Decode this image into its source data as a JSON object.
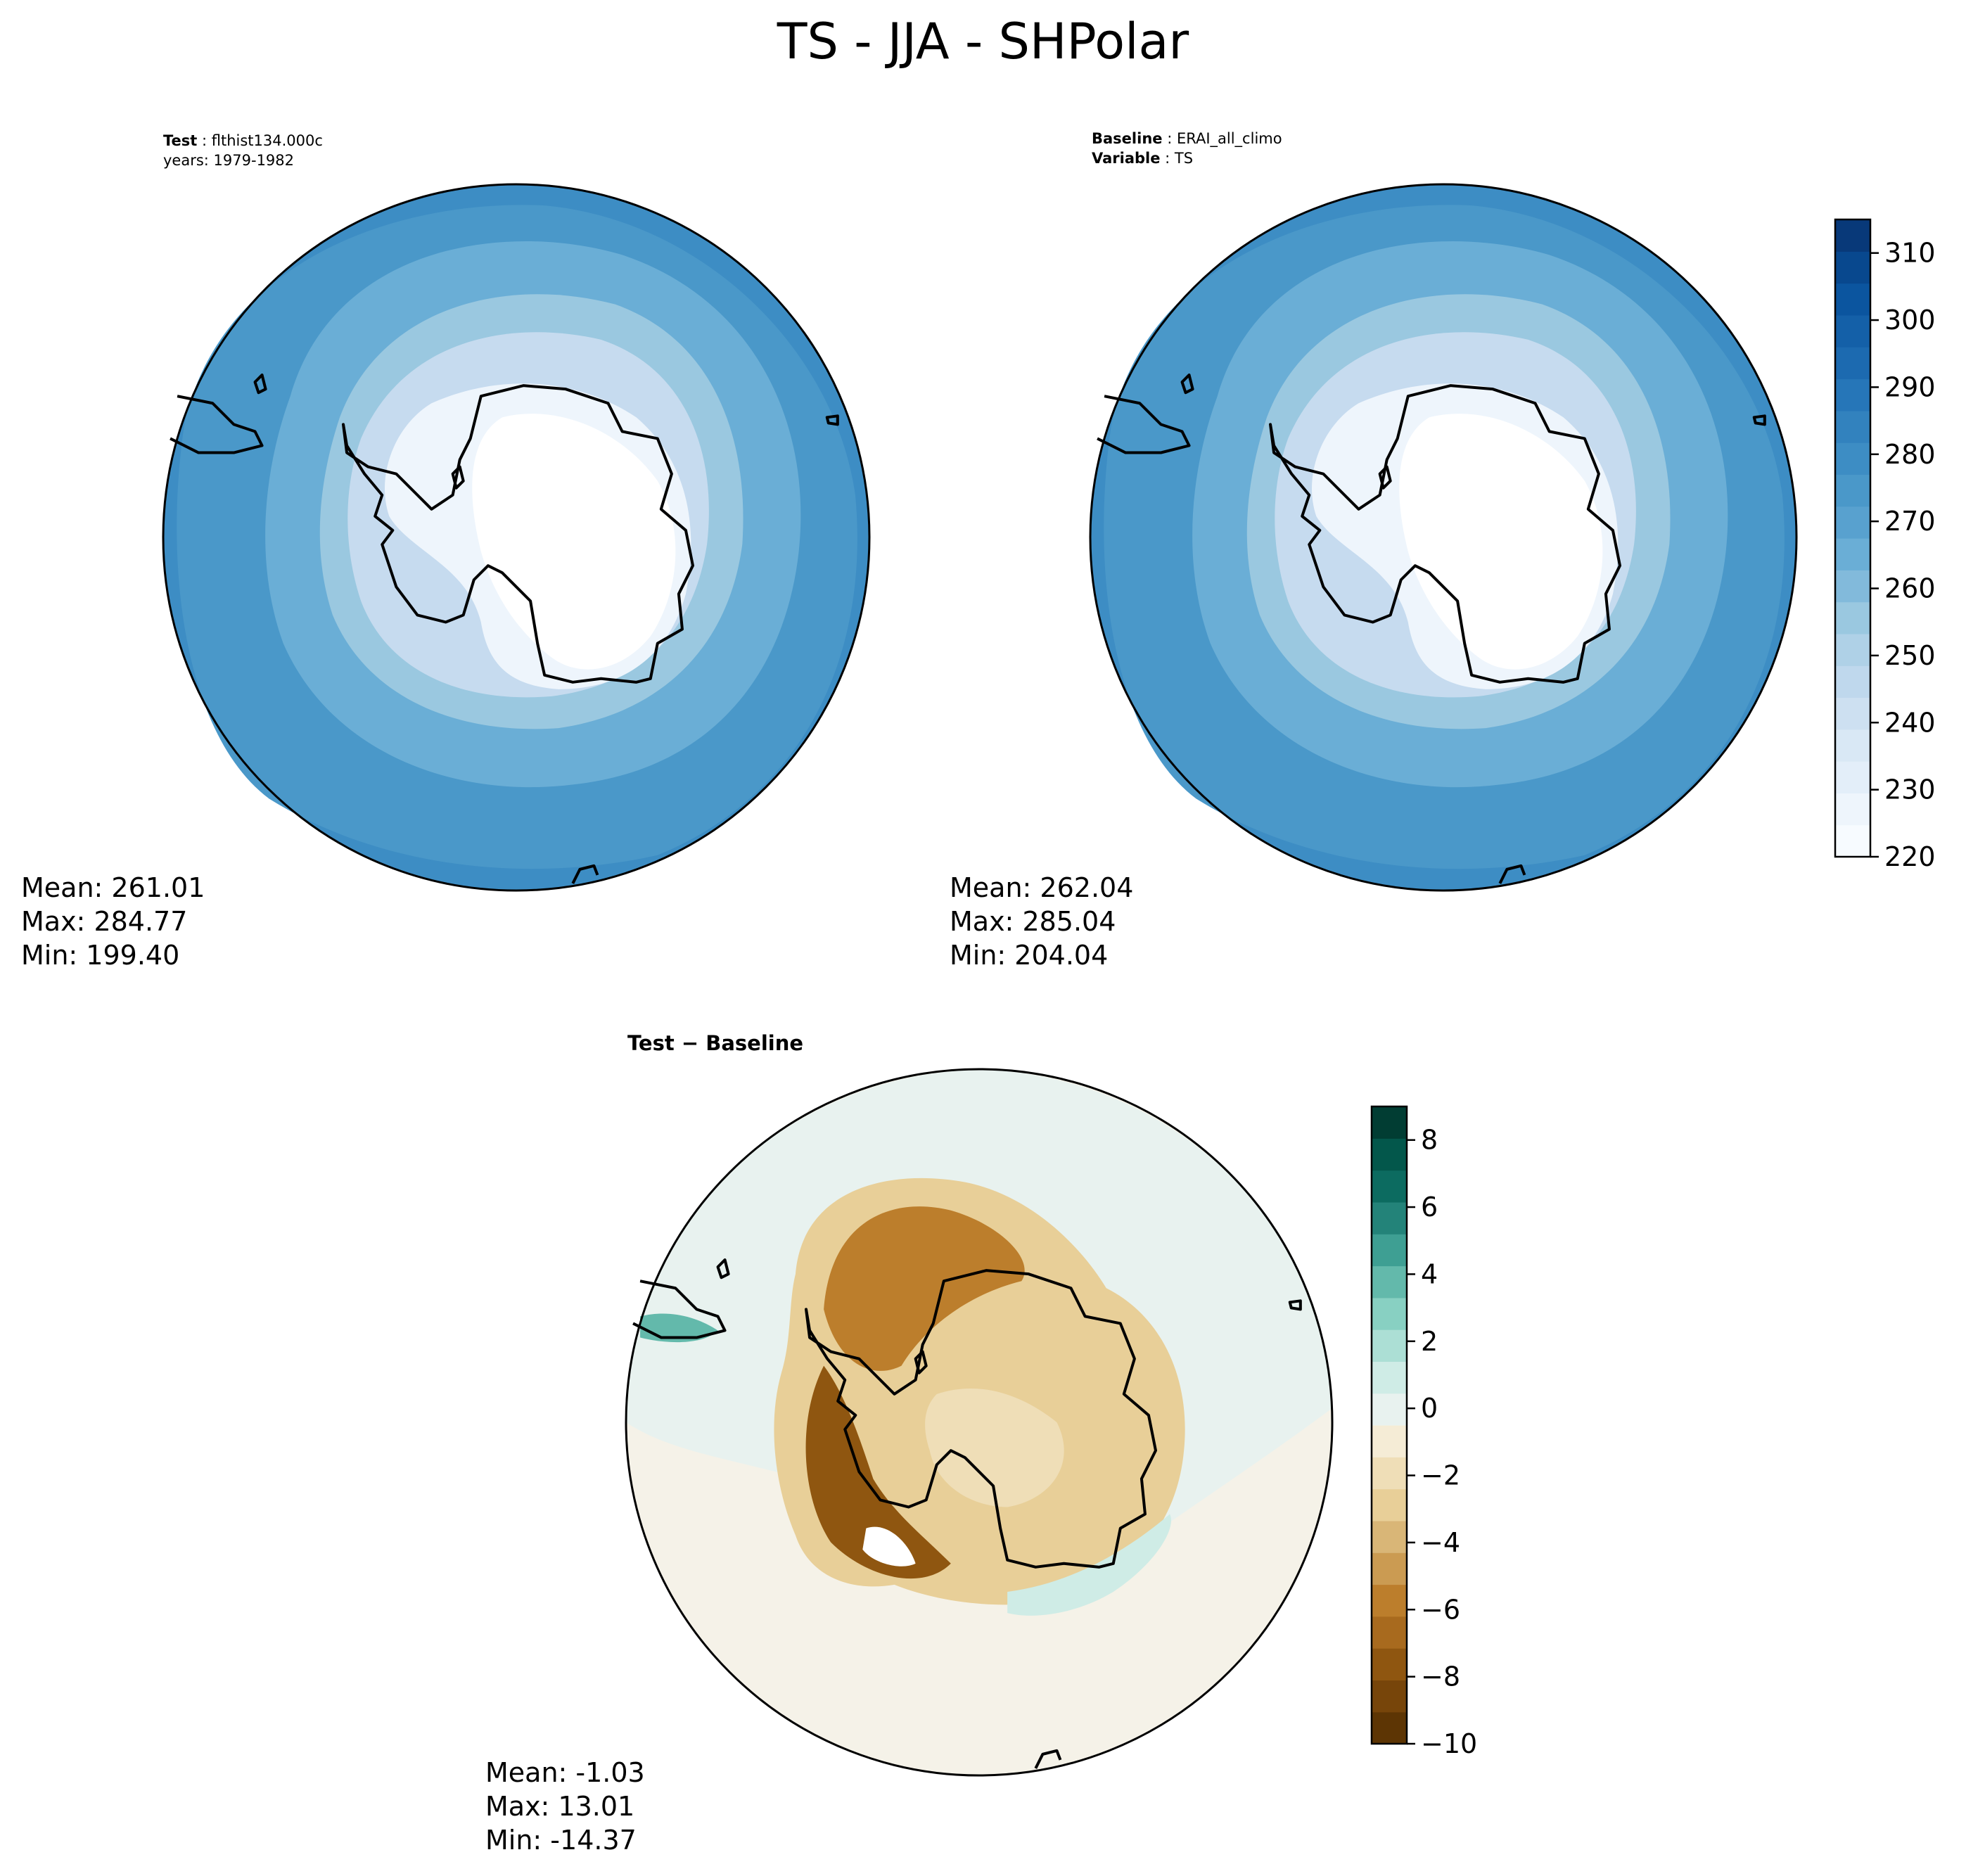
{
  "figure": {
    "title": "TS - JJA - SHPolar"
  },
  "panels": {
    "test": {
      "label_key": "Test",
      "label_value": "flthist134.000c",
      "years": "years: 1979-1982",
      "stats": {
        "mean": "Mean: 261.01",
        "max": "Max: 284.77",
        "min": "Min: 199.40"
      }
    },
    "baseline": {
      "label_key": "Baseline",
      "label_value": "ERAI_all_climo",
      "variable_key": "Variable",
      "variable_value": "TS",
      "stats": {
        "mean": "Mean: 262.04",
        "max": "Max: 285.04",
        "min": "Min: 204.04"
      }
    },
    "diff": {
      "title": "Test − Baseline",
      "stats": {
        "mean": "Mean: -1.03",
        "max": "Max: 13.01",
        "min": "Min: -14.37"
      }
    }
  },
  "chart_data": [
    {
      "type": "heatmap",
      "name": "test",
      "projection": "south-polar-stereographic",
      "colormap": "Blues",
      "levels": [
        220,
        225,
        230,
        235,
        240,
        245,
        250,
        255,
        260,
        265,
        270,
        275,
        280,
        285,
        290,
        295,
        300,
        305,
        310,
        315
      ],
      "pattern": "Antarctic interior below 220 K; rising outward through the sea-ice zone to about 280 K at the outer edge",
      "stats": {
        "mean": 261.01,
        "max": 284.77,
        "min": 199.4
      }
    },
    {
      "type": "heatmap",
      "name": "baseline",
      "projection": "south-polar-stereographic",
      "colormap": "Blues",
      "levels": [
        220,
        225,
        230,
        235,
        240,
        245,
        250,
        255,
        260,
        265,
        270,
        275,
        280,
        285,
        290,
        295,
        300,
        305,
        310,
        315
      ],
      "pattern": "Antarctic interior below 220 K; rising outward through the sea-ice zone to about 280 K at the outer edge",
      "stats": {
        "mean": 262.04,
        "max": 285.04,
        "min": 204.04
      }
    },
    {
      "type": "heatmap",
      "name": "test-minus-baseline",
      "projection": "south-polar-stereographic",
      "colormap": "BrBG",
      "levels": [
        -10,
        -9,
        -8,
        -7,
        -6,
        -5,
        -4,
        -3,
        -2,
        -1,
        0,
        1,
        2,
        3,
        4,
        5,
        6,
        7,
        8,
        9
      ],
      "pattern": "negative (brown) over Antarctica and the surrounding sea-ice zone, strongest around the Weddell Sea and Antarctic Peninsula; near zero over open ocean; small positive (teal) band off East Antarctica",
      "stats": {
        "mean": -1.03,
        "max": 13.01,
        "min": -14.37
      }
    }
  ],
  "colorbars": {
    "abs": {
      "min": 220,
      "max": 315,
      "ticks": [
        "220",
        "230",
        "240",
        "250",
        "260",
        "270",
        "280",
        "290",
        "300",
        "310"
      ],
      "colors": [
        "#f7fbff",
        "#eef5fc",
        "#e3eef9",
        "#d9e8f5",
        "#cde0f1",
        "#bfd8ed",
        "#afd1e7",
        "#9ac8e0",
        "#82badb",
        "#6aaed6",
        "#58a1cf",
        "#4a98c9",
        "#3d8dc4",
        "#3282be",
        "#2676b8",
        "#1c6ab0",
        "#1460a8",
        "#0b559f",
        "#08488e",
        "#083979"
      ]
    },
    "diff": {
      "min": -10,
      "max": 9,
      "ticks": [
        "−10",
        "−8",
        "−6",
        "−4",
        "−2",
        "0",
        "2",
        "4",
        "6",
        "8"
      ],
      "colors": [
        "#5d3504",
        "#77450a",
        "#8f5610",
        "#a86a1e",
        "#bc7e2c",
        "#cb9b52",
        "#d9b677",
        "#e8cf98",
        "#efdeb7",
        "#f5ecd6",
        "#e8f2ef",
        "#cfece6",
        "#acdfd5",
        "#88d0c2",
        "#63b9ab",
        "#3e9f93",
        "#238379",
        "#0c6b60",
        "#03574b",
        "#013d33"
      ]
    }
  }
}
